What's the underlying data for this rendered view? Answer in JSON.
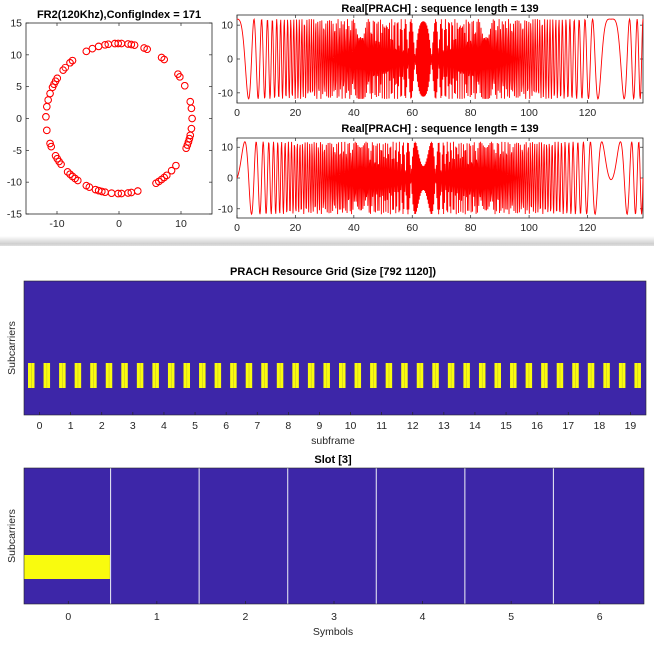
{
  "chart_data": [
    {
      "type": "scatter",
      "title": "FR2(120Khz),ConfigIndex = 171",
      "xlim": [
        -15,
        15
      ],
      "ylim": [
        -15,
        15
      ],
      "xticks": [
        "-10",
        "0",
        "10"
      ],
      "yticks": [
        "15",
        "10",
        "5",
        "0",
        "-5",
        "-10",
        "-15"
      ],
      "marker": "circle",
      "color": "#ff0000",
      "radius": 11.79,
      "n_points": 139
    },
    {
      "type": "line",
      "title": "Real[PRACH] : sequence length = 139",
      "xlim": [
        0,
        139
      ],
      "ylim": [
        -13,
        13
      ],
      "xticks": [
        "0",
        "20",
        "40",
        "60",
        "80",
        "100",
        "120"
      ],
      "yticks": [
        "10",
        "0",
        "-10"
      ],
      "color": "#ff0000"
    },
    {
      "type": "line",
      "title": "Real[PRACH] : sequence length = 139",
      "xlim": [
        0,
        139
      ],
      "ylim": [
        -13,
        13
      ],
      "xticks": [
        "0",
        "20",
        "40",
        "60",
        "80",
        "100",
        "120"
      ],
      "yticks": [
        "10",
        "0",
        "-10"
      ],
      "color": "#ff0000"
    },
    {
      "type": "heatmap",
      "title": "PRACH Resource Grid (Size [792 1120])",
      "xlabel": "subframe",
      "ylabel": "Subcarriers",
      "xticks": [
        "0",
        "1",
        "2",
        "3",
        "4",
        "5",
        "6",
        "7",
        "8",
        "9",
        "10",
        "11",
        "12",
        "13",
        "14",
        "15",
        "16",
        "17",
        "18",
        "19"
      ],
      "background_color": "#3d26a8",
      "active_color": "#f9fb0e",
      "active_slots": 40
    },
    {
      "type": "heatmap",
      "title": "Slot [3]",
      "xlabel": "Symbols",
      "ylabel": "Subcarriers",
      "xticks": [
        "0",
        "1",
        "2",
        "3",
        "4",
        "5",
        "6"
      ],
      "background_color": "#3d26a8",
      "active_color": "#f9fb0e",
      "active_symbol": 0
    }
  ]
}
